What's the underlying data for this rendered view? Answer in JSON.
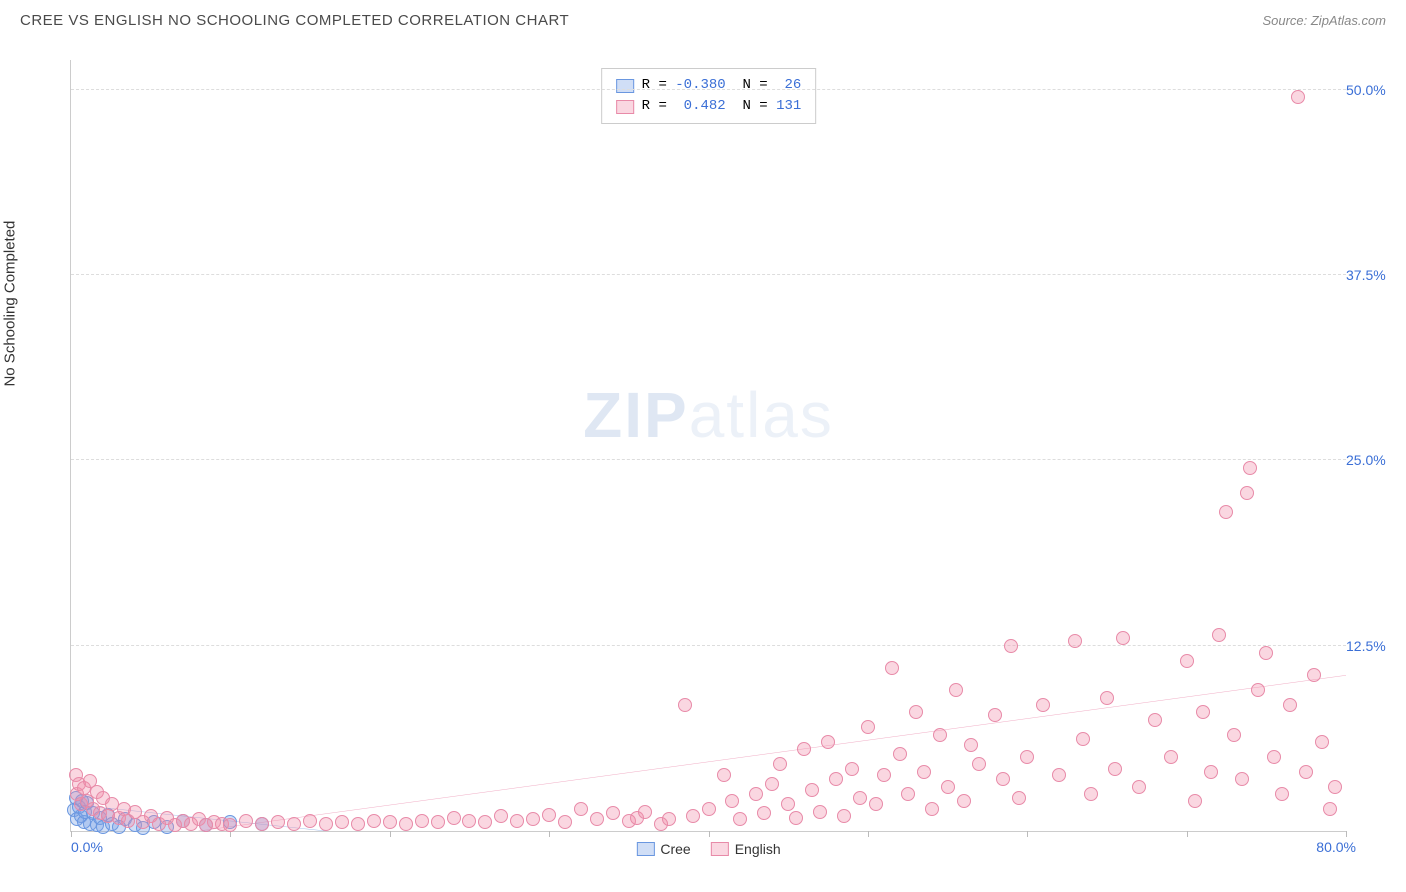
{
  "title": "CREE VS ENGLISH NO SCHOOLING COMPLETED CORRELATION CHART",
  "source": "Source: ZipAtlas.com",
  "watermark": {
    "bold": "ZIP",
    "rest": "atlas"
  },
  "chart": {
    "type": "scatter",
    "ylabel": "No Schooling Completed",
    "xlim": [
      0,
      80
    ],
    "ylim": [
      0,
      52
    ],
    "xtick_positions": [
      0,
      10,
      20,
      30,
      40,
      50,
      60,
      70,
      80
    ],
    "x_labels": [
      {
        "text": "0.0%",
        "at": 0,
        "align": "left"
      },
      {
        "text": "80.0%",
        "at": 80,
        "align": "right"
      }
    ],
    "y_gridlines": [
      12.5,
      25.0,
      37.5,
      50.0
    ],
    "y_labels": [
      "12.5%",
      "25.0%",
      "37.5%",
      "50.0%"
    ],
    "background_color": "#ffffff",
    "grid_color": "#dddddd",
    "axis_color": "#cccccc",
    "tick_label_color": "#3b6fd6",
    "point_radius": 7,
    "series": [
      {
        "name": "Cree",
        "fill_color": "rgba(120,160,230,0.35)",
        "stroke_color": "#6a97e0",
        "line_color": "#4a7fd4",
        "R": "-0.380",
        "N": "26",
        "trend": {
          "x1": 0,
          "y1": 1.8,
          "x2": 16,
          "y2": 0
        },
        "points": [
          [
            0.2,
            1.4
          ],
          [
            0.3,
            2.2
          ],
          [
            0.4,
            0.8
          ],
          [
            0.5,
            1.6
          ],
          [
            0.6,
            1.0
          ],
          [
            0.7,
            2.0
          ],
          [
            0.8,
            0.6
          ],
          [
            0.9,
            1.3
          ],
          [
            1.0,
            1.9
          ],
          [
            1.2,
            0.5
          ],
          [
            1.4,
            1.2
          ],
          [
            1.6,
            0.4
          ],
          [
            1.8,
            0.9
          ],
          [
            2.0,
            0.3
          ],
          [
            2.3,
            1.1
          ],
          [
            2.6,
            0.5
          ],
          [
            3.0,
            0.3
          ],
          [
            3.4,
            0.8
          ],
          [
            4.0,
            0.4
          ],
          [
            4.5,
            0.2
          ],
          [
            5.2,
            0.6
          ],
          [
            6.0,
            0.3
          ],
          [
            7.0,
            0.7
          ],
          [
            8.5,
            0.4
          ],
          [
            10.0,
            0.6
          ],
          [
            12.0,
            0.5
          ]
        ]
      },
      {
        "name": "English",
        "fill_color": "rgba(240,140,170,0.35)",
        "stroke_color": "#e88aa8",
        "line_color": "#e05a8a",
        "R": "0.482",
        "N": "131",
        "trend": {
          "x1": 8,
          "y1": 0,
          "x2": 80,
          "y2": 10.5
        },
        "points": [
          [
            0.3,
            3.8
          ],
          [
            0.4,
            2.5
          ],
          [
            0.5,
            3.2
          ],
          [
            0.6,
            1.8
          ],
          [
            0.8,
            2.9
          ],
          [
            1.0,
            2.0
          ],
          [
            1.2,
            3.4
          ],
          [
            1.4,
            1.5
          ],
          [
            1.6,
            2.6
          ],
          [
            1.8,
            1.2
          ],
          [
            2.0,
            2.2
          ],
          [
            2.3,
            1.0
          ],
          [
            2.6,
            1.8
          ],
          [
            3.0,
            0.9
          ],
          [
            3.3,
            1.5
          ],
          [
            3.6,
            0.7
          ],
          [
            4.0,
            1.3
          ],
          [
            4.5,
            0.6
          ],
          [
            5.0,
            1.0
          ],
          [
            5.5,
            0.5
          ],
          [
            6.0,
            0.9
          ],
          [
            6.5,
            0.4
          ],
          [
            7.0,
            0.7
          ],
          [
            7.5,
            0.5
          ],
          [
            8.0,
            0.8
          ],
          [
            8.5,
            0.4
          ],
          [
            9.0,
            0.6
          ],
          [
            9.5,
            0.5
          ],
          [
            10.0,
            0.4
          ],
          [
            11.0,
            0.7
          ],
          [
            12.0,
            0.5
          ],
          [
            13.0,
            0.6
          ],
          [
            14.0,
            0.5
          ],
          [
            15.0,
            0.7
          ],
          [
            16.0,
            0.5
          ],
          [
            17.0,
            0.6
          ],
          [
            18.0,
            0.5
          ],
          [
            19.0,
            0.7
          ],
          [
            20.0,
            0.6
          ],
          [
            21.0,
            0.5
          ],
          [
            22.0,
            0.7
          ],
          [
            23.0,
            0.6
          ],
          [
            24.0,
            0.9
          ],
          [
            25.0,
            0.7
          ],
          [
            26.0,
            0.6
          ],
          [
            27.0,
            1.0
          ],
          [
            28.0,
            0.7
          ],
          [
            29.0,
            0.8
          ],
          [
            30.0,
            1.1
          ],
          [
            31.0,
            0.6
          ],
          [
            32.0,
            1.5
          ],
          [
            33.0,
            0.8
          ],
          [
            34.0,
            1.2
          ],
          [
            35.0,
            0.7
          ],
          [
            35.5,
            0.9
          ],
          [
            36.0,
            1.3
          ],
          [
            37.0,
            0.5
          ],
          [
            37.5,
            0.8
          ],
          [
            38.5,
            8.5
          ],
          [
            39.0,
            1.0
          ],
          [
            40.0,
            1.5
          ],
          [
            41.0,
            3.8
          ],
          [
            41.5,
            2.0
          ],
          [
            42.0,
            0.8
          ],
          [
            43.0,
            2.5
          ],
          [
            43.5,
            1.2
          ],
          [
            44.0,
            3.2
          ],
          [
            44.5,
            4.5
          ],
          [
            45.0,
            1.8
          ],
          [
            45.5,
            0.9
          ],
          [
            46.0,
            5.5
          ],
          [
            46.5,
            2.8
          ],
          [
            47.0,
            1.3
          ],
          [
            47.5,
            6.0
          ],
          [
            48.0,
            3.5
          ],
          [
            48.5,
            1.0
          ],
          [
            49.0,
            4.2
          ],
          [
            49.5,
            2.2
          ],
          [
            50.0,
            7.0
          ],
          [
            50.5,
            1.8
          ],
          [
            51.0,
            3.8
          ],
          [
            51.5,
            11.0
          ],
          [
            52.0,
            5.2
          ],
          [
            52.5,
            2.5
          ],
          [
            53.0,
            8.0
          ],
          [
            53.5,
            4.0
          ],
          [
            54.0,
            1.5
          ],
          [
            54.5,
            6.5
          ],
          [
            55.0,
            3.0
          ],
          [
            55.5,
            9.5
          ],
          [
            56.0,
            2.0
          ],
          [
            56.5,
            5.8
          ],
          [
            57.0,
            4.5
          ],
          [
            58.0,
            7.8
          ],
          [
            58.5,
            3.5
          ],
          [
            59.0,
            12.5
          ],
          [
            59.5,
            2.2
          ],
          [
            60.0,
            5.0
          ],
          [
            61.0,
            8.5
          ],
          [
            62.0,
            3.8
          ],
          [
            63.0,
            12.8
          ],
          [
            63.5,
            6.2
          ],
          [
            64.0,
            2.5
          ],
          [
            65.0,
            9.0
          ],
          [
            65.5,
            4.2
          ],
          [
            66.0,
            13.0
          ],
          [
            67.0,
            3.0
          ],
          [
            68.0,
            7.5
          ],
          [
            69.0,
            5.0
          ],
          [
            70.0,
            11.5
          ],
          [
            70.5,
            2.0
          ],
          [
            71.0,
            8.0
          ],
          [
            71.5,
            4.0
          ],
          [
            72.0,
            13.2
          ],
          [
            72.5,
            21.5
          ],
          [
            73.0,
            6.5
          ],
          [
            73.5,
            3.5
          ],
          [
            73.8,
            22.8
          ],
          [
            74.0,
            24.5
          ],
          [
            74.5,
            9.5
          ],
          [
            75.0,
            12.0
          ],
          [
            75.5,
            5.0
          ],
          [
            76.0,
            2.5
          ],
          [
            76.5,
            8.5
          ],
          [
            77.0,
            49.5
          ],
          [
            77.5,
            4.0
          ],
          [
            78.0,
            10.5
          ],
          [
            78.5,
            6.0
          ],
          [
            79.0,
            1.5
          ],
          [
            79.3,
            3.0
          ]
        ]
      }
    ]
  },
  "legend_bottom": [
    {
      "label": "Cree",
      "fill": "rgba(120,160,230,0.35)",
      "stroke": "#6a97e0"
    },
    {
      "label": "English",
      "fill": "rgba(240,140,170,0.35)",
      "stroke": "#e88aa8"
    }
  ]
}
